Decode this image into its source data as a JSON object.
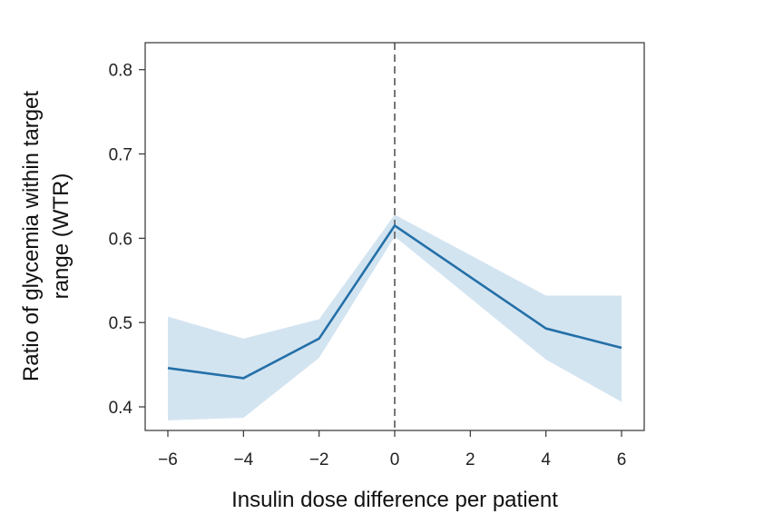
{
  "chart_data": {
    "type": "line",
    "title": "",
    "xlabel": "Insulin dose difference per patient",
    "ylabel_lines": [
      "Ratio of glycemia within target",
      "range (WTR)"
    ],
    "xlim": [
      -6.6,
      6.6
    ],
    "ylim": [
      0.372,
      0.832
    ],
    "xticks": [
      -6,
      -4,
      -2,
      0,
      2,
      4,
      6
    ],
    "xtick_labels": [
      "−6",
      "−4",
      "−2",
      "0",
      "2",
      "4",
      "6"
    ],
    "yticks": [
      0.4,
      0.5,
      0.6,
      0.7,
      0.8
    ],
    "ytick_labels": [
      "0.4",
      "0.5",
      "0.6",
      "0.7",
      "0.8"
    ],
    "reference_line_x": 0,
    "series": [
      {
        "name": "WTR",
        "x": [
          -6,
          -4,
          -2,
          0,
          4,
          6
        ],
        "y": [
          0.446,
          0.434,
          0.481,
          0.615,
          0.493,
          0.47
        ],
        "ci_lower": [
          0.384,
          0.387,
          0.458,
          0.602,
          0.456,
          0.406
        ],
        "ci_upper": [
          0.507,
          0.481,
          0.504,
          0.628,
          0.532,
          0.532
        ]
      }
    ],
    "colors": {
      "line": "#2470a8",
      "band": "#d3e4f1",
      "reference": "#777777",
      "axes": "#333333"
    }
  }
}
